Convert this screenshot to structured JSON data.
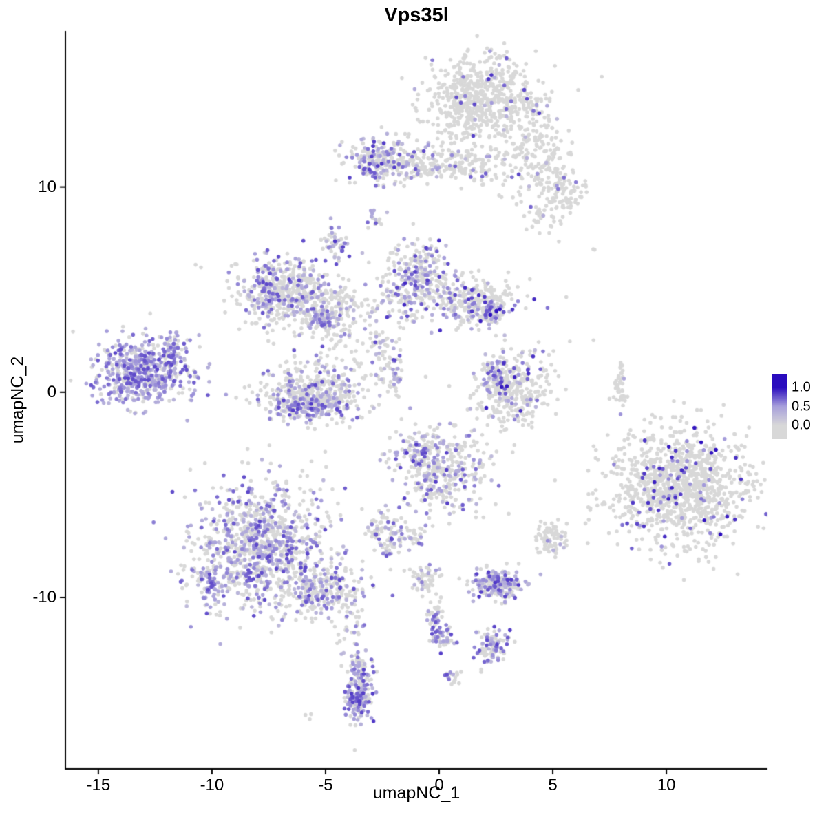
{
  "chart_data": {
    "type": "scatter",
    "title": "Vps35l",
    "xlabel": "umapNC_1",
    "ylabel": "umapNC_2",
    "xlim": [
      -16.45,
      14.45
    ],
    "ylim": [
      -18.35,
      17.6
    ],
    "xticks": [
      -15,
      -10,
      -5,
      0,
      5,
      10
    ],
    "yticks": [
      -10,
      0,
      10
    ],
    "grid": false,
    "legend": {
      "position": "right",
      "labels": [
        "1.0",
        "0.5",
        "0.0"
      ],
      "values": [
        1.0,
        0.5,
        0.0
      ]
    },
    "colorscale": {
      "low": "#d8d8d8",
      "mid": "#a79fdb",
      "high": "#2a0cbe",
      "domain": [
        0.0,
        0.5,
        1.0
      ]
    },
    "point_radius": 2.8,
    "seed": 42,
    "clusters": [
      {
        "name": "top-main",
        "cx": 1.8,
        "cy": 14.2,
        "sx": 1.25,
        "sy": 1.1,
        "n": 650,
        "f": 0.05,
        "vmax": 0.9
      },
      {
        "name": "top-arm",
        "cx": 4.3,
        "cy": 11.6,
        "sx": 0.85,
        "sy": 1.15,
        "n": 190,
        "f": 0.06,
        "vmax": 0.8
      },
      {
        "name": "top-arm2",
        "cx": 5.3,
        "cy": 9.6,
        "sx": 0.55,
        "sy": 0.5,
        "n": 90,
        "f": 0.05,
        "vmax": 0.7
      },
      {
        "name": "arm-tail",
        "cx": 4.4,
        "cy": 8.3,
        "sx": 0.5,
        "sy": 0.4,
        "n": 28,
        "f": 0.05,
        "vmax": 0.7
      },
      {
        "name": "band-left",
        "cx": -2.5,
        "cy": 11.3,
        "sx": 0.8,
        "sy": 0.5,
        "n": 240,
        "f": 0.38,
        "vmax": 0.85
      },
      {
        "name": "band-right",
        "cx": 0.4,
        "cy": 11.1,
        "sx": 1.3,
        "sy": 0.45,
        "n": 220,
        "f": 0.12,
        "vmax": 0.8
      },
      {
        "name": "spot-a",
        "cx": -2.8,
        "cy": 8.5,
        "sx": 0.18,
        "sy": 0.3,
        "n": 16,
        "f": 0.5,
        "vmax": 0.8
      },
      {
        "name": "spot-b",
        "cx": -4.6,
        "cy": 7.2,
        "sx": 0.25,
        "sy": 0.45,
        "n": 45,
        "f": 0.55,
        "vmax": 0.85
      },
      {
        "name": "midleft-main",
        "cx": -6.6,
        "cy": 4.8,
        "sx": 1.1,
        "sy": 0.85,
        "n": 420,
        "f": 0.25,
        "vmax": 0.8
      },
      {
        "name": "midleft-rim",
        "cx": -7.5,
        "cy": 5.1,
        "sx": 0.35,
        "sy": 0.7,
        "n": 90,
        "f": 0.6,
        "vmax": 0.8
      },
      {
        "name": "midleft-arm",
        "cx": -4.2,
        "cy": 4.2,
        "sx": 0.9,
        "sy": 0.55,
        "n": 110,
        "f": 0.12,
        "vmax": 0.7
      },
      {
        "name": "midleft-dense",
        "cx": -5.2,
        "cy": 3.6,
        "sx": 0.3,
        "sy": 0.3,
        "n": 60,
        "f": 0.7,
        "vmax": 0.75
      },
      {
        "name": "midleft-hook",
        "cx": -4.5,
        "cy": 2.9,
        "sx": 0.4,
        "sy": 0.6,
        "n": 60,
        "f": 0.18,
        "vmax": 0.8
      },
      {
        "name": "center-top",
        "cx": -0.9,
        "cy": 5.3,
        "sx": 0.75,
        "sy": 0.95,
        "n": 330,
        "f": 0.4,
        "vmax": 0.9
      },
      {
        "name": "centertop-right",
        "cx": 1.6,
        "cy": 4.4,
        "sx": 0.95,
        "sy": 0.6,
        "n": 240,
        "f": 0.22,
        "vmax": 0.9
      },
      {
        "name": "centertop-dense",
        "cx": 2.3,
        "cy": 3.9,
        "sx": 0.35,
        "sy": 0.3,
        "n": 60,
        "f": 0.5,
        "vmax": 1.0
      },
      {
        "name": "connector",
        "cx": -2.5,
        "cy": 2.3,
        "sx": 0.35,
        "sy": 0.75,
        "n": 50,
        "f": 0.18,
        "vmax": 1.0
      },
      {
        "name": "left-bright",
        "cx": -13.1,
        "cy": 1.0,
        "sx": 1.05,
        "sy": 0.8,
        "n": 540,
        "f": 0.72,
        "vmin": 0.3,
        "vmax": 0.8
      },
      {
        "name": "left-arm",
        "cx": -11.7,
        "cy": 2.1,
        "sx": 0.35,
        "sy": 0.4,
        "n": 50,
        "f": 0.5,
        "vmax": 0.8
      },
      {
        "name": "u-main",
        "cx": -5.5,
        "cy": 0.1,
        "sx": 1.2,
        "sy": 0.7,
        "n": 420,
        "f": 0.22,
        "vmax": 0.8
      },
      {
        "name": "u-bottom",
        "cx": -5.8,
        "cy": -0.7,
        "sx": 0.85,
        "sy": 0.3,
        "n": 130,
        "f": 0.72,
        "vmax": 0.85
      },
      {
        "name": "streak-mid",
        "cx": -1.9,
        "cy": 0.8,
        "sx": 0.12,
        "sy": 0.55,
        "n": 35,
        "f": 0.4,
        "vmax": 0.8
      },
      {
        "name": "rightmid-hook",
        "cx": 3.3,
        "cy": 0.1,
        "sx": 0.85,
        "sy": 0.85,
        "n": 330,
        "f": 0.15,
        "vmax": 1.0
      },
      {
        "name": "rightmid-edge",
        "cx": 2.4,
        "cy": 0.7,
        "sx": 0.3,
        "sy": 0.5,
        "n": 70,
        "f": 0.5,
        "vmax": 0.9
      },
      {
        "name": "streak-right",
        "cx": 8.0,
        "cy": 0.2,
        "sx": 0.18,
        "sy": 0.6,
        "n": 40,
        "f": 0.08,
        "vmax": 0.6
      },
      {
        "name": "right-main",
        "cx": 10.6,
        "cy": -4.6,
        "sx": 1.55,
        "sy": 1.4,
        "n": 1150,
        "f": 0.08,
        "vmin": 0.5,
        "vmax": 1.0
      },
      {
        "name": "center-mid",
        "cx": 0.0,
        "cy": -3.9,
        "sx": 1.0,
        "sy": 1.05,
        "n": 360,
        "f": 0.28,
        "vmax": 0.85
      },
      {
        "name": "centermid-dense",
        "cx": -0.9,
        "cy": -2.9,
        "sx": 0.35,
        "sy": 0.4,
        "n": 60,
        "f": 0.5,
        "vmax": 0.9
      },
      {
        "name": "small-left",
        "cx": -2.4,
        "cy": -6.9,
        "sx": 0.45,
        "sy": 0.5,
        "n": 90,
        "f": 0.35,
        "vmax": 0.8
      },
      {
        "name": "tiny-pair",
        "cx": -1.0,
        "cy": -7.0,
        "sx": 0.25,
        "sy": 0.3,
        "n": 25,
        "f": 0.2,
        "vmax": 0.7
      },
      {
        "name": "botleft-main",
        "cx": -7.9,
        "cy": -7.6,
        "sx": 1.5,
        "sy": 1.5,
        "n": 980,
        "f": 0.42,
        "vmax": 0.8
      },
      {
        "name": "botleft-rim",
        "cx": -10.1,
        "cy": -9.3,
        "sx": 0.4,
        "sy": 0.5,
        "n": 70,
        "f": 0.6,
        "vmax": 0.8
      },
      {
        "name": "botleft-arm",
        "cx": -5.1,
        "cy": -9.6,
        "sx": 0.9,
        "sy": 0.65,
        "n": 240,
        "f": 0.32,
        "vmax": 0.8
      },
      {
        "name": "botleft-tail",
        "cx": -3.9,
        "cy": -11.6,
        "sx": 0.3,
        "sy": 0.9,
        "n": 40,
        "f": 0.25,
        "vmax": 0.7
      },
      {
        "name": "small-grey",
        "cx": 4.95,
        "cy": -7.1,
        "sx": 0.4,
        "sy": 0.4,
        "n": 80,
        "f": 0.05,
        "vmax": 0.6
      },
      {
        "name": "purple-small",
        "cx": 2.55,
        "cy": -9.35,
        "sx": 0.55,
        "sy": 0.4,
        "n": 210,
        "f": 0.55,
        "vmax": 0.85
      },
      {
        "name": "chain-top",
        "cx": -0.7,
        "cy": -9.2,
        "sx": 0.35,
        "sy": 0.4,
        "n": 55,
        "f": 0.3,
        "vmax": 0.8
      },
      {
        "name": "chain-mid",
        "cx": -0.2,
        "cy": -10.8,
        "sx": 0.2,
        "sy": 0.5,
        "n": 40,
        "f": 0.25,
        "vmax": 0.8
      },
      {
        "name": "chain-bot",
        "cx": 0.1,
        "cy": -11.9,
        "sx": 0.3,
        "sy": 0.3,
        "n": 45,
        "f": 0.55,
        "vmax": 0.85
      },
      {
        "name": "small-purple2",
        "cx": 2.3,
        "cy": -12.4,
        "sx": 0.35,
        "sy": 0.45,
        "n": 90,
        "f": 0.55,
        "vmax": 0.85
      },
      {
        "name": "dot",
        "cx": 0.6,
        "cy": -13.9,
        "sx": 0.2,
        "sy": 0.2,
        "n": 18,
        "f": 0.5,
        "vmax": 0.8
      },
      {
        "name": "bottom-teardrop",
        "cx": -3.5,
        "cy": -14.2,
        "sx": 0.3,
        "sy": 0.85,
        "n": 150,
        "f": 0.45,
        "vmax": 0.85
      },
      {
        "name": "bottom-tip",
        "cx": -3.6,
        "cy": -14.9,
        "sx": 0.22,
        "sy": 0.35,
        "n": 60,
        "f": 0.75,
        "vmax": 0.85
      },
      {
        "name": "strays",
        "cx": -1.5,
        "cy": 0.5,
        "sx": 5.5,
        "sy": 4.5,
        "n": 55,
        "f": 0.1,
        "vmax": 0.7
      },
      {
        "name": "stray-1",
        "cx": 6.7,
        "cy": 6.9,
        "sx": 0.1,
        "sy": 0.1,
        "n": 2,
        "f": 0
      },
      {
        "name": "stray-2",
        "cx": -10.6,
        "cy": 6.1,
        "sx": 0.1,
        "sy": 0.1,
        "n": 2,
        "f": 0
      },
      {
        "name": "stray-3",
        "cx": -5.8,
        "cy": -15.9,
        "sx": 0.15,
        "sy": 0.15,
        "n": 3,
        "f": 0.2,
        "vmax": 0.6
      }
    ]
  }
}
